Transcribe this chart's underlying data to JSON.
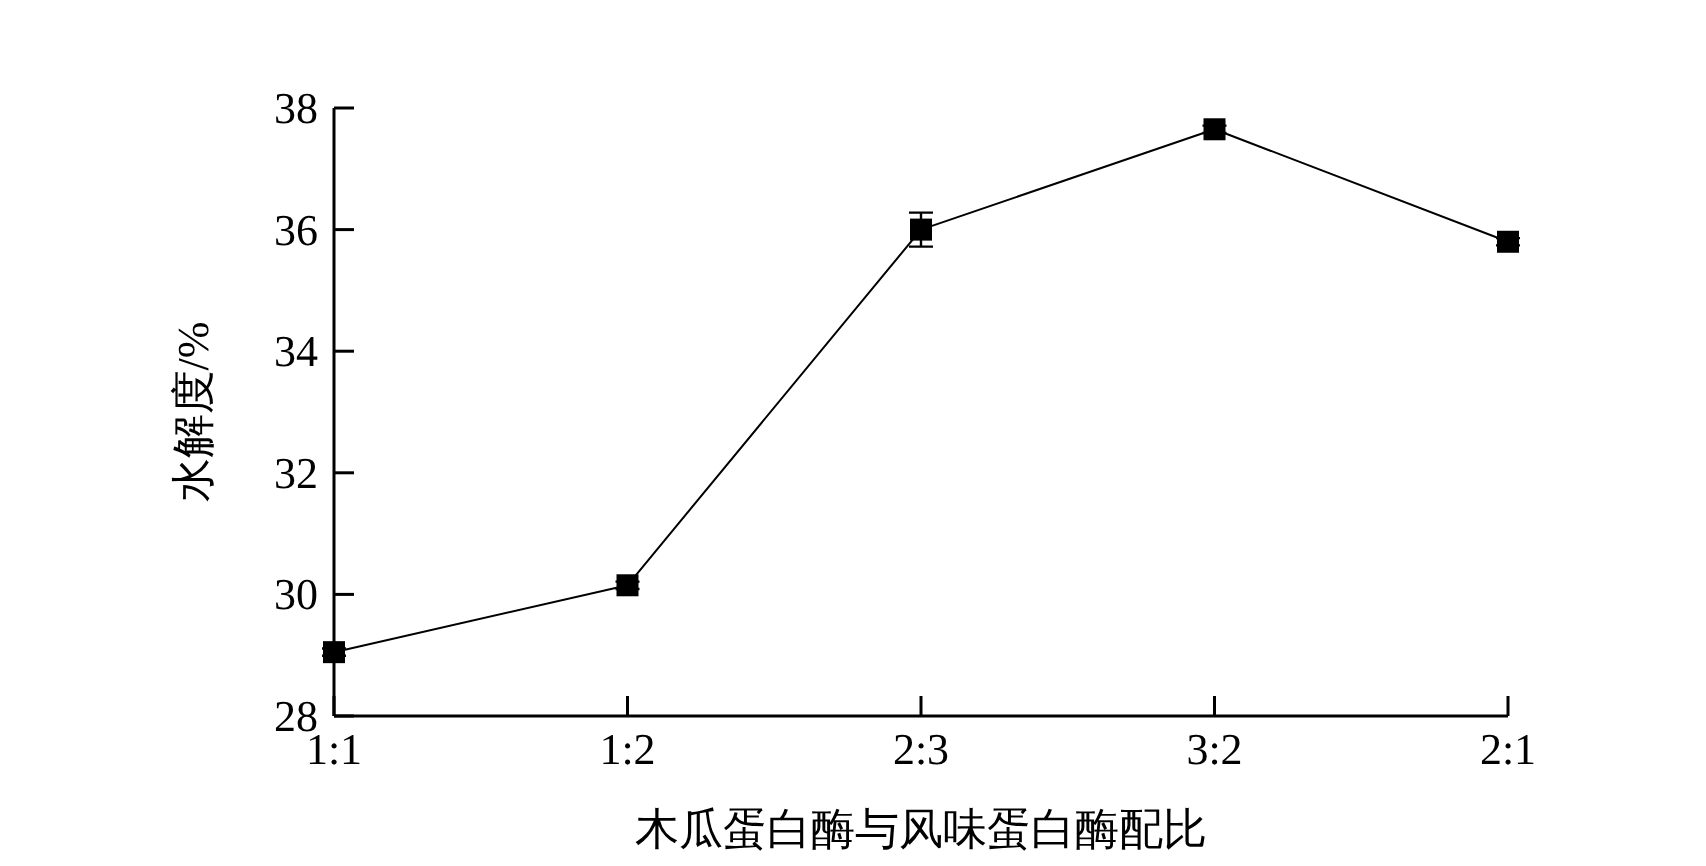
{
  "chart_data": {
    "type": "line",
    "xlabel": "木瓜蛋白酶与风味蛋白酶配比",
    "ylabel": "水解度/%",
    "categories": [
      "1:1",
      "1:2",
      "2:3",
      "3:2",
      "2:1"
    ],
    "series": [
      {
        "color": "#000000",
        "values": [
          29.05,
          30.15,
          36.0,
          37.65,
          35.8
        ],
        "errors": [
          0.06,
          0.06,
          0.28,
          0.06,
          0.06
        ]
      }
    ],
    "ylim": [
      28,
      38
    ],
    "yticks": [
      28,
      30,
      32,
      34,
      36,
      38
    ],
    "marker": "square",
    "line_style": "solid",
    "grid": false
  }
}
